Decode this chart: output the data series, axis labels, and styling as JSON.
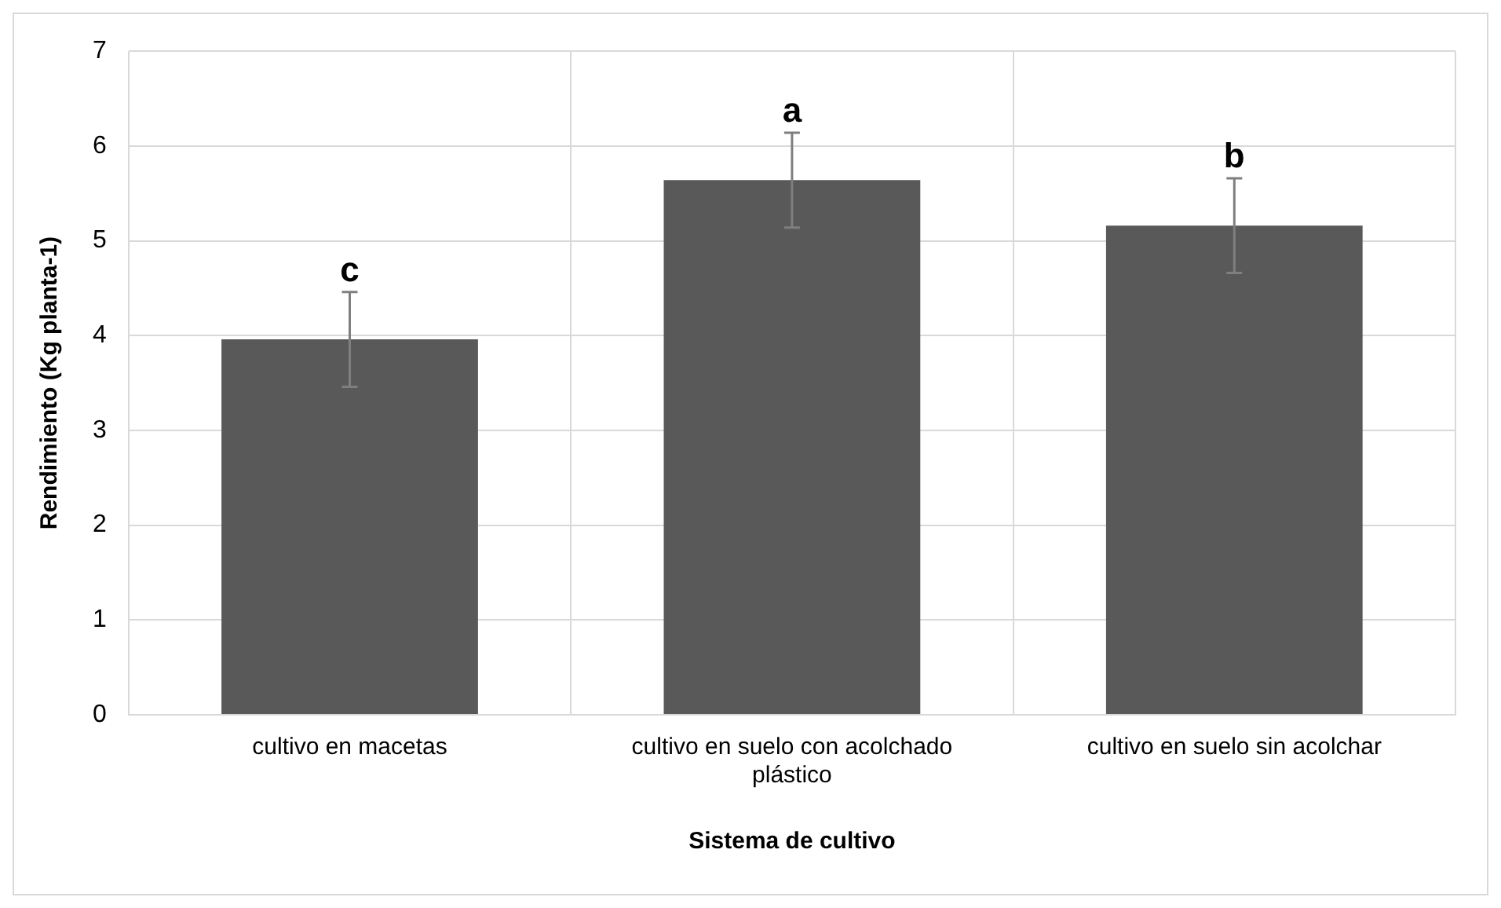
{
  "chart_data": {
    "type": "bar",
    "xlabel": "Sistema de cultivo",
    "ylabel": "Rendimiento (Kg planta-1)",
    "categories": [
      "cultivo en macetas",
      "cultivo en suelo con acolchado plástico",
      "cultivo en suelo sin acolchar"
    ],
    "values": [
      3.96,
      5.64,
      5.16
    ],
    "errors": [
      0.5,
      0.5,
      0.5
    ],
    "color": "#595959",
    "ylim": [
      0,
      7
    ],
    "yticks": [
      0,
      1,
      2,
      3,
      4,
      5,
      6,
      7
    ],
    "grid": true,
    "legend": false,
    "annotations": [
      {
        "text": "c",
        "x": "cultivo en macetas",
        "y": 4.46
      },
      {
        "text": "a",
        "x": "cultivo en suelo con acolchado plástico",
        "y": 6.14
      },
      {
        "text": "b",
        "x": "cultivo en suelo sin acolchar",
        "y": 5.66
      }
    ]
  }
}
